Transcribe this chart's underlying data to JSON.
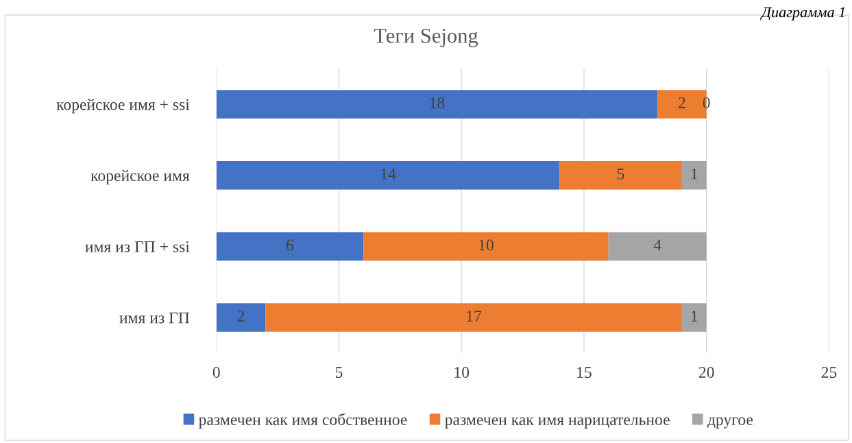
{
  "chart_data": {
    "type": "bar",
    "orientation": "horizontal",
    "stacked": true,
    "title": "Теги Sejong",
    "annotations": [
      "Диаграмма 1"
    ],
    "categories": [
      "корейское имя + ssi",
      "корейское имя",
      "имя из ГП + ssi",
      "имя из ГП"
    ],
    "series": [
      {
        "name": "размечен как имя собственное",
        "color": "#4472c4",
        "values": [
          18,
          14,
          6,
          2
        ]
      },
      {
        "name": "размечен как имя нарицательное",
        "color": "#ed7d31",
        "values": [
          2,
          5,
          10,
          17
        ]
      },
      {
        "name": "другое",
        "color": "#a5a5a5",
        "values": [
          0,
          1,
          4,
          1
        ]
      }
    ],
    "xlim": [
      0,
      25
    ],
    "xticks": [
      0,
      5,
      10,
      15,
      20,
      25
    ],
    "grid": "x",
    "legend": "bottom",
    "data_labels": true
  }
}
